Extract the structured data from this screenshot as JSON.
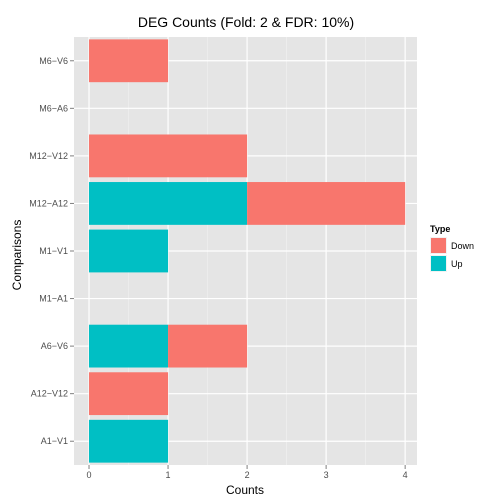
{
  "chart_data": {
    "type": "bar",
    "orientation": "horizontal",
    "stacked": true,
    "title": "DEG Counts (Fold: 2 & FDR: 10%)",
    "xlabel": "Counts",
    "ylabel": "Comparisons",
    "xlim": [
      0,
      4.15
    ],
    "x_ticks": [
      0,
      1,
      2,
      3,
      4
    ],
    "grid": true,
    "legend_placement": "right",
    "legend_title": "Type",
    "categories": [
      "A1−V1",
      "A12−V12",
      "A6−V6",
      "M1−A1",
      "M1−V1",
      "M12−A12",
      "M12−V12",
      "M6−A6",
      "M6−V6"
    ],
    "series": [
      {
        "name": "Up",
        "color": "#00bfc4",
        "values": [
          1,
          0,
          1,
          0,
          1,
          2,
          0,
          0,
          0
        ]
      },
      {
        "name": "Down",
        "color": "#f8766d",
        "values": [
          0,
          1,
          1,
          0,
          0,
          2,
          2,
          0,
          1
        ]
      }
    ]
  }
}
